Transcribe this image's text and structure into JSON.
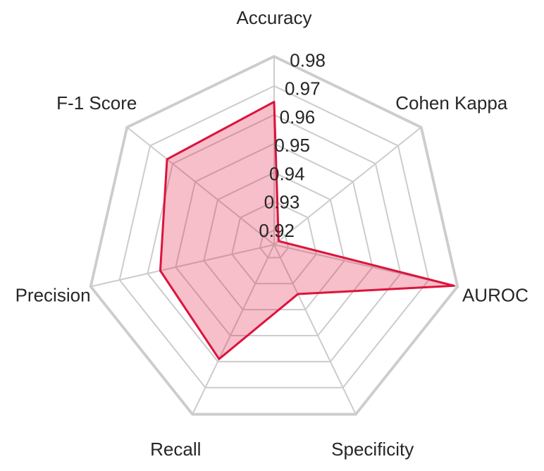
{
  "chart_data": {
    "type": "radar",
    "title": "",
    "axes": [
      "Accuracy",
      "Cohen Kappa",
      "AUROC",
      "Specificity",
      "Recall",
      "Precision",
      "F-1 Score"
    ],
    "radial_ticks": [
      "0.92",
      "0.93",
      "0.94",
      "0.95",
      "0.96",
      "0.97",
      "0.98"
    ],
    "rlim": [
      0.915,
      0.9805
    ],
    "grid": true,
    "series": [
      {
        "values": [
          0.9645,
          0.917,
          0.979,
          0.934,
          0.959,
          0.9555,
          0.9625
        ],
        "color": "#dc143c"
      }
    ]
  }
}
